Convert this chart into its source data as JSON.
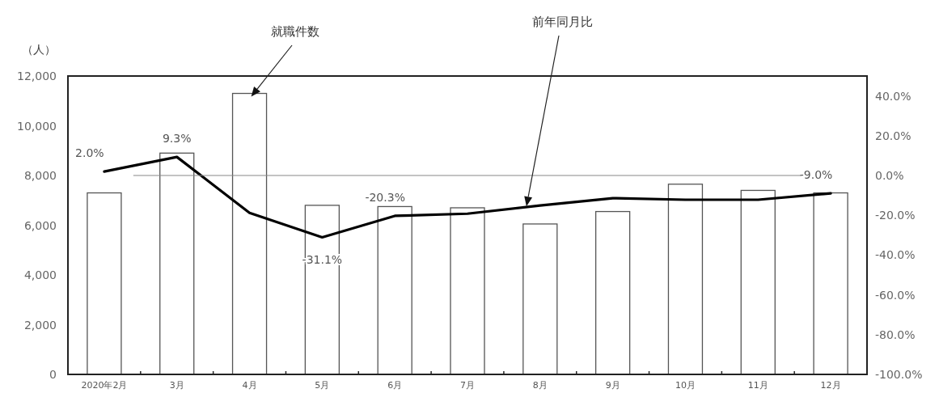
{
  "chart_data": {
    "type": "bar",
    "ylabel": "（人）",
    "categories": [
      "2020年2月",
      "3月",
      "4月",
      "5月",
      "6月",
      "7月",
      "8月",
      "9月",
      "10月",
      "11月",
      "12月"
    ],
    "series": [
      {
        "name": "就職件数",
        "color": "#ffffff",
        "values": [
          7300,
          8900,
          11300,
          6800,
          6750,
          6700,
          6050,
          6550,
          7650,
          7400,
          7300
        ]
      },
      {
        "name": "前年同月比",
        "type": "line",
        "axis": "y2",
        "color": "#000000",
        "values": [
          2.0,
          9.3,
          -18.8,
          -31.1,
          -20.3,
          -19.2,
          -15.1,
          -11.4,
          -12.2,
          -12.2,
          -9.0
        ],
        "value_labels": [
          "2.0%",
          "9.3%",
          null,
          "-31.1%",
          "-20.3%",
          null,
          null,
          null,
          null,
          null,
          "-9.0%"
        ]
      }
    ],
    "ylim": [
      0,
      12000
    ],
    "yticks": [
      {
        "value": 0,
        "label": "0"
      },
      {
        "value": 2000,
        "label": "2,000"
      },
      {
        "value": 4000,
        "label": "4,000"
      },
      {
        "value": 6000,
        "label": "6,000"
      },
      {
        "value": 8000,
        "label": "8,000"
      },
      {
        "value": 10000,
        "label": "10,000"
      },
      {
        "value": 12000,
        "label": "12,000"
      }
    ],
    "y2lim": [
      -100,
      50
    ],
    "y2ticks": [
      {
        "value": -100,
        "label": "-100.0%"
      },
      {
        "value": -80,
        "label": "-80.0%"
      },
      {
        "value": -60,
        "label": "-60.0%"
      },
      {
        "value": -40,
        "label": "-40.0%"
      },
      {
        "value": -20,
        "label": "-20.0%"
      },
      {
        "value": 0,
        "label": "0.0%"
      },
      {
        "value": 20,
        "label": "20.0%"
      },
      {
        "value": 40,
        "label": "40.0%"
      }
    ],
    "ref_lines": [
      {
        "axis": "y2",
        "value": 0,
        "color": "#888888"
      }
    ],
    "grid": false,
    "legend": false,
    "marker": "none",
    "line_style": "solid"
  }
}
